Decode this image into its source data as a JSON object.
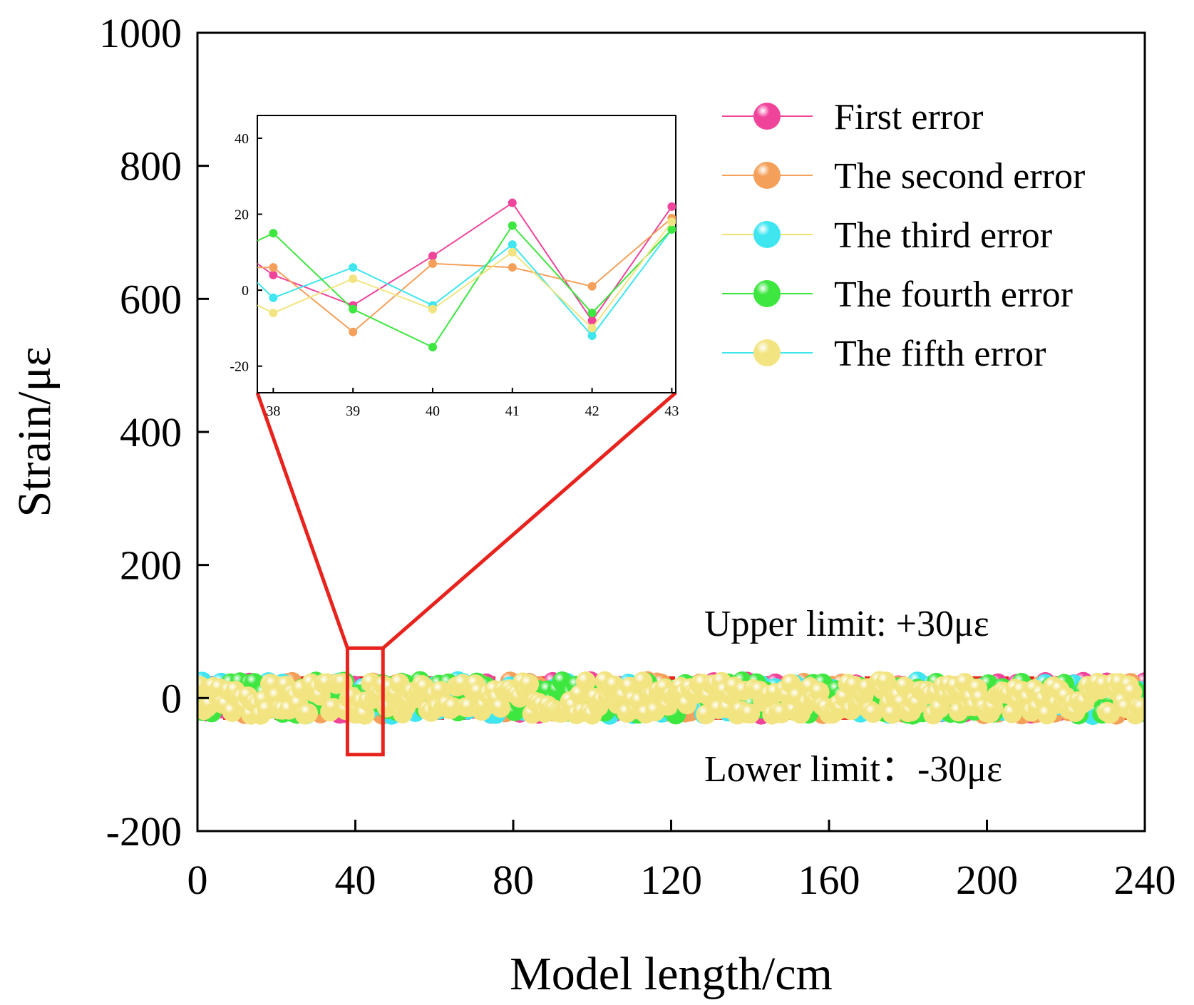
{
  "chart_data": {
    "type": "scatter",
    "title": "",
    "xlabel": "Model length/cm",
    "ylabel": "Strain/με",
    "xlim": [
      0,
      240
    ],
    "ylim": [
      -200,
      1000
    ],
    "xticks": [
      "0",
      "40",
      "80",
      "120",
      "160",
      "200",
      "240"
    ],
    "yticks": [
      "-200",
      "0",
      "200",
      "400",
      "600",
      "800",
      "1000"
    ],
    "legend_position": "top-right",
    "limits": {
      "upper": {
        "value": 30,
        "label": "Upper limit: +30με",
        "color": "#e8231d"
      },
      "lower": {
        "value": -30,
        "label": "Lower limit：-30με",
        "color": "#e8231d"
      }
    },
    "zoom_box": {
      "x": [
        38,
        47
      ],
      "y": [
        -85,
        75
      ],
      "color": "#e8231d"
    },
    "series": [
      {
        "name": "First  error",
        "color": "#f0449b",
        "line_color": "#f0449b",
        "amplitude": 30,
        "seed": 11
      },
      {
        "name": "The second  error",
        "color": "#f5a05a",
        "line_color": "#f5a05a",
        "amplitude": 30,
        "seed": 23
      },
      {
        "name": "The third  error",
        "color": "#3fe6f0",
        "line_color": "#f5e06a",
        "amplitude": 30,
        "seed": 37
      },
      {
        "name": "The fourth  error",
        "color": "#3ee640",
        "line_color": "#3ee640",
        "amplitude": 30,
        "seed": 51
      },
      {
        "name": "The fifth error",
        "color": "#f2e480",
        "line_color": "#3fe6f0",
        "amplitude": 30,
        "seed": 67
      }
    ],
    "inset": {
      "xlim": [
        37.8,
        43.05
      ],
      "ylim": [
        -27,
        46
      ],
      "xticks": [
        "38",
        "39",
        "40",
        "41",
        "42",
        "43"
      ],
      "yticks": [
        "-20",
        "0",
        "20",
        "40"
      ],
      "x": [
        38,
        39,
        40,
        41,
        42,
        43
      ],
      "series": [
        {
          "name": "First  error",
          "color": "#f0449b",
          "left_stub": 7,
          "values": [
            4,
            -4,
            9,
            23,
            -8,
            22
          ]
        },
        {
          "name": "The second  error",
          "color": "#f5a05a",
          "left_stub": 6,
          "values": [
            6,
            -11,
            7,
            6,
            1,
            19
          ]
        },
        {
          "name": "The third  error",
          "color": "#3fe6f0",
          "left_stub": 2,
          "values": [
            -2,
            6,
            -4,
            12,
            -12,
            16
          ]
        },
        {
          "name": "The fourth  error",
          "color": "#3ee640",
          "left_stub": 13,
          "values": [
            15,
            -5,
            -15,
            17,
            -6,
            16
          ]
        },
        {
          "name": "The fifth error",
          "color": "#f2e480",
          "left_stub": -4,
          "values": [
            -6,
            3,
            -5,
            10,
            -10,
            18
          ]
        }
      ]
    }
  }
}
